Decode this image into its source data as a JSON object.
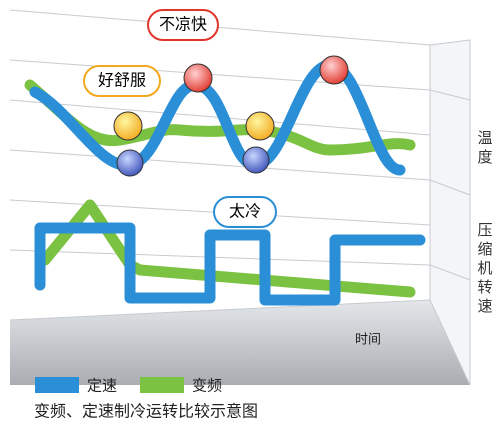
{
  "callouts": {
    "hot": "不凉快",
    "comfortable": "好舒服",
    "cold": "太冷"
  },
  "axes": {
    "temperature": "温度",
    "speed": "压缩机转速",
    "time": "时间"
  },
  "legend": [
    {
      "name": "定速",
      "color": "#2a8fd6"
    },
    {
      "name": "变频",
      "color": "#7cc242"
    }
  ],
  "caption": "变频、定速制冷运转比较示意图"
}
